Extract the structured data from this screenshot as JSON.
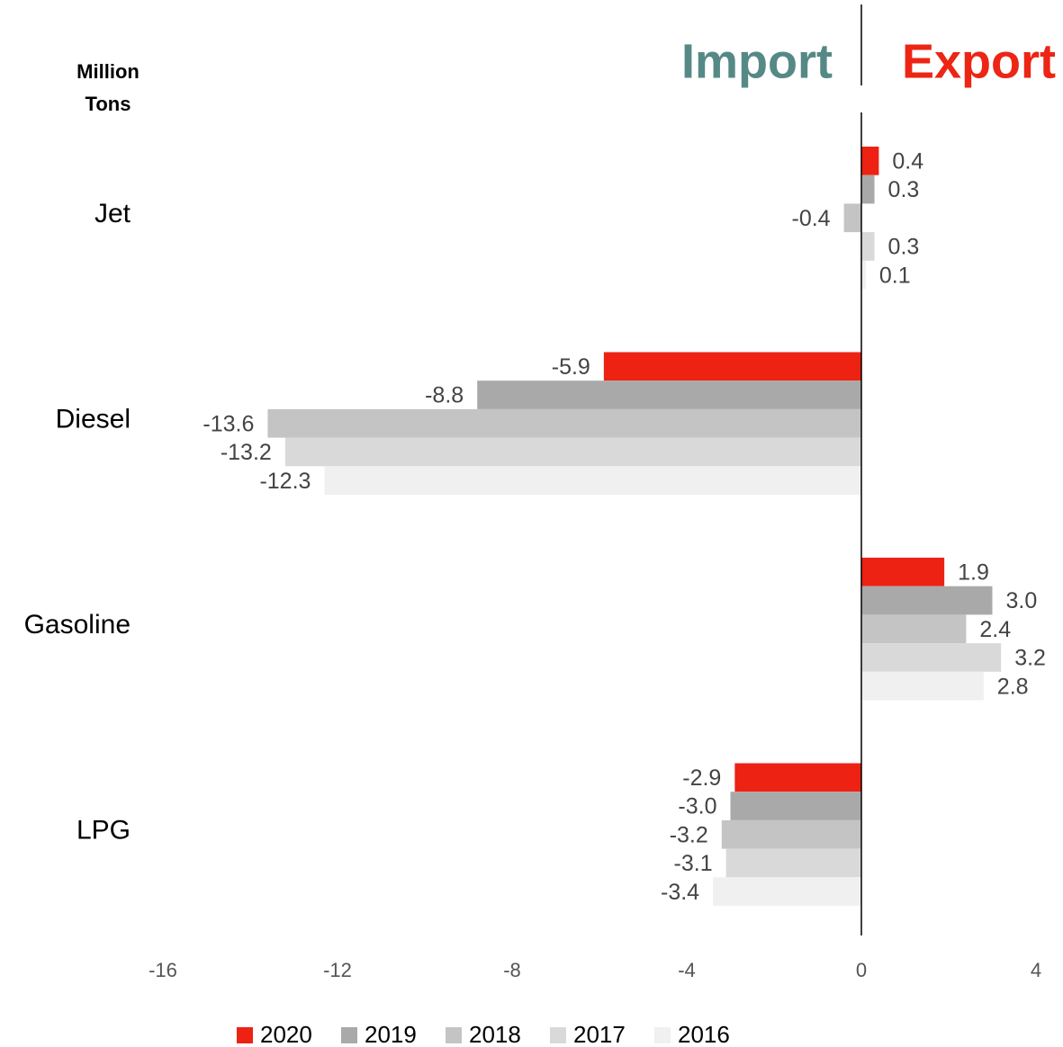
{
  "chart_data": {
    "type": "hbar",
    "y_label": "Million Tons",
    "annotations": [
      {
        "text": "Import",
        "color": "#558986"
      },
      {
        "text": "Export",
        "color": "#ec2515"
      }
    ],
    "categories": [
      "Jet",
      "Diesel",
      "Gasoline",
      "LPG"
    ],
    "series": [
      {
        "name": "2020",
        "color": "#ee2213",
        "values": [
          0.4,
          -5.9,
          1.9,
          -2.9
        ]
      },
      {
        "name": "2019",
        "color": "#a9a9a9",
        "values": [
          0.3,
          -8.8,
          3.0,
          -3.0
        ],
        "value_labels": [
          "0.3",
          "-8.8",
          "3.0",
          "-3.0"
        ]
      },
      {
        "name": "2018",
        "color": "#c4c4c4",
        "values": [
          -0.4,
          -13.6,
          2.4,
          -3.2
        ]
      },
      {
        "name": "2017",
        "color": "#d9d9d9",
        "values": [
          0.3,
          -13.2,
          3.2,
          -3.1
        ]
      },
      {
        "name": "2016",
        "color": "#f0f0f0",
        "values": [
          0.1,
          -12.3,
          2.8,
          -3.4
        ]
      }
    ],
    "xlim": [
      -16,
      4
    ],
    "xticks": [
      -16,
      -12,
      -8,
      -4,
      0,
      4
    ],
    "grid": false,
    "legend": "bottom"
  }
}
